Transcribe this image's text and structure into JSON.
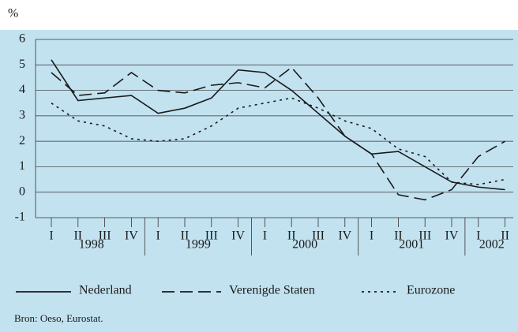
{
  "chart_data": {
    "type": "line",
    "y_label": "%",
    "category_groups": [
      {
        "label": "1998",
        "categories": [
          "I",
          "II",
          "III",
          "IV"
        ]
      },
      {
        "label": "1999",
        "categories": [
          "I",
          "II",
          "III",
          "IV"
        ]
      },
      {
        "label": "2000",
        "categories": [
          "I",
          "II",
          "III",
          "IV"
        ]
      },
      {
        "label": "2001",
        "categories": [
          "I",
          "II",
          "III",
          "IV"
        ]
      },
      {
        "label": "2002",
        "categories": [
          "I",
          "II"
        ]
      }
    ],
    "series": [
      {
        "name": "Nederland",
        "color": "#1a1a1a",
        "style": "solid",
        "values": [
          5.2,
          3.6,
          3.7,
          3.8,
          3.1,
          3.3,
          3.7,
          4.8,
          4.7,
          4.0,
          3.1,
          2.2,
          1.5,
          1.6,
          1.0,
          0.4,
          0.2,
          0.1
        ]
      },
      {
        "name": "Verenigde Staten",
        "color": "#1a1a1a",
        "style": "dashed",
        "values": [
          4.7,
          3.8,
          3.9,
          4.7,
          4.0,
          3.9,
          4.2,
          4.3,
          4.1,
          4.9,
          3.7,
          2.2,
          1.5,
          -0.1,
          -0.3,
          0.1,
          1.4,
          2.0
        ]
      },
      {
        "name": "Eurozone",
        "color": "#1a1a1a",
        "style": "dotted",
        "values": [
          3.5,
          2.8,
          2.6,
          2.1,
          2.0,
          2.1,
          2.6,
          3.3,
          3.5,
          3.7,
          3.3,
          2.8,
          2.5,
          1.7,
          1.4,
          0.4,
          0.3,
          0.5
        ]
      }
    ],
    "ylim": [
      -1,
      6
    ],
    "yticks": [
      -1,
      0,
      1,
      2,
      3,
      4,
      5,
      6
    ],
    "grid": true,
    "source": "Bron: Oeso, Eurostat."
  }
}
